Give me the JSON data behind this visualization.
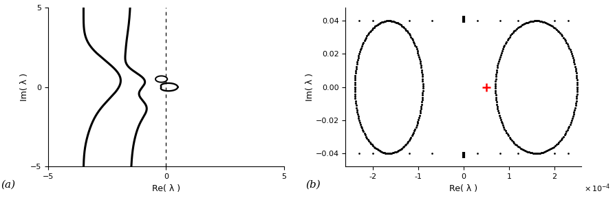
{
  "panel_a": {
    "xlim": [
      -5,
      5
    ],
    "ylim": [
      -5,
      5
    ],
    "xlabel": "Re( λ )",
    "ylabel": "Im( λ )",
    "label": "(a)",
    "linewidth": 2.2,
    "linecolor": "black"
  },
  "panel_b": {
    "xlim": [
      -0.00026,
      0.00026
    ],
    "ylim": [
      -0.048,
      0.048
    ],
    "xlabel": "Re( λ )",
    "ylabel": "Im( λ )",
    "label": "(b)",
    "red_cross_x": 5e-05,
    "red_cross_y": 0,
    "dot_size": 5,
    "dot_color": "black"
  }
}
